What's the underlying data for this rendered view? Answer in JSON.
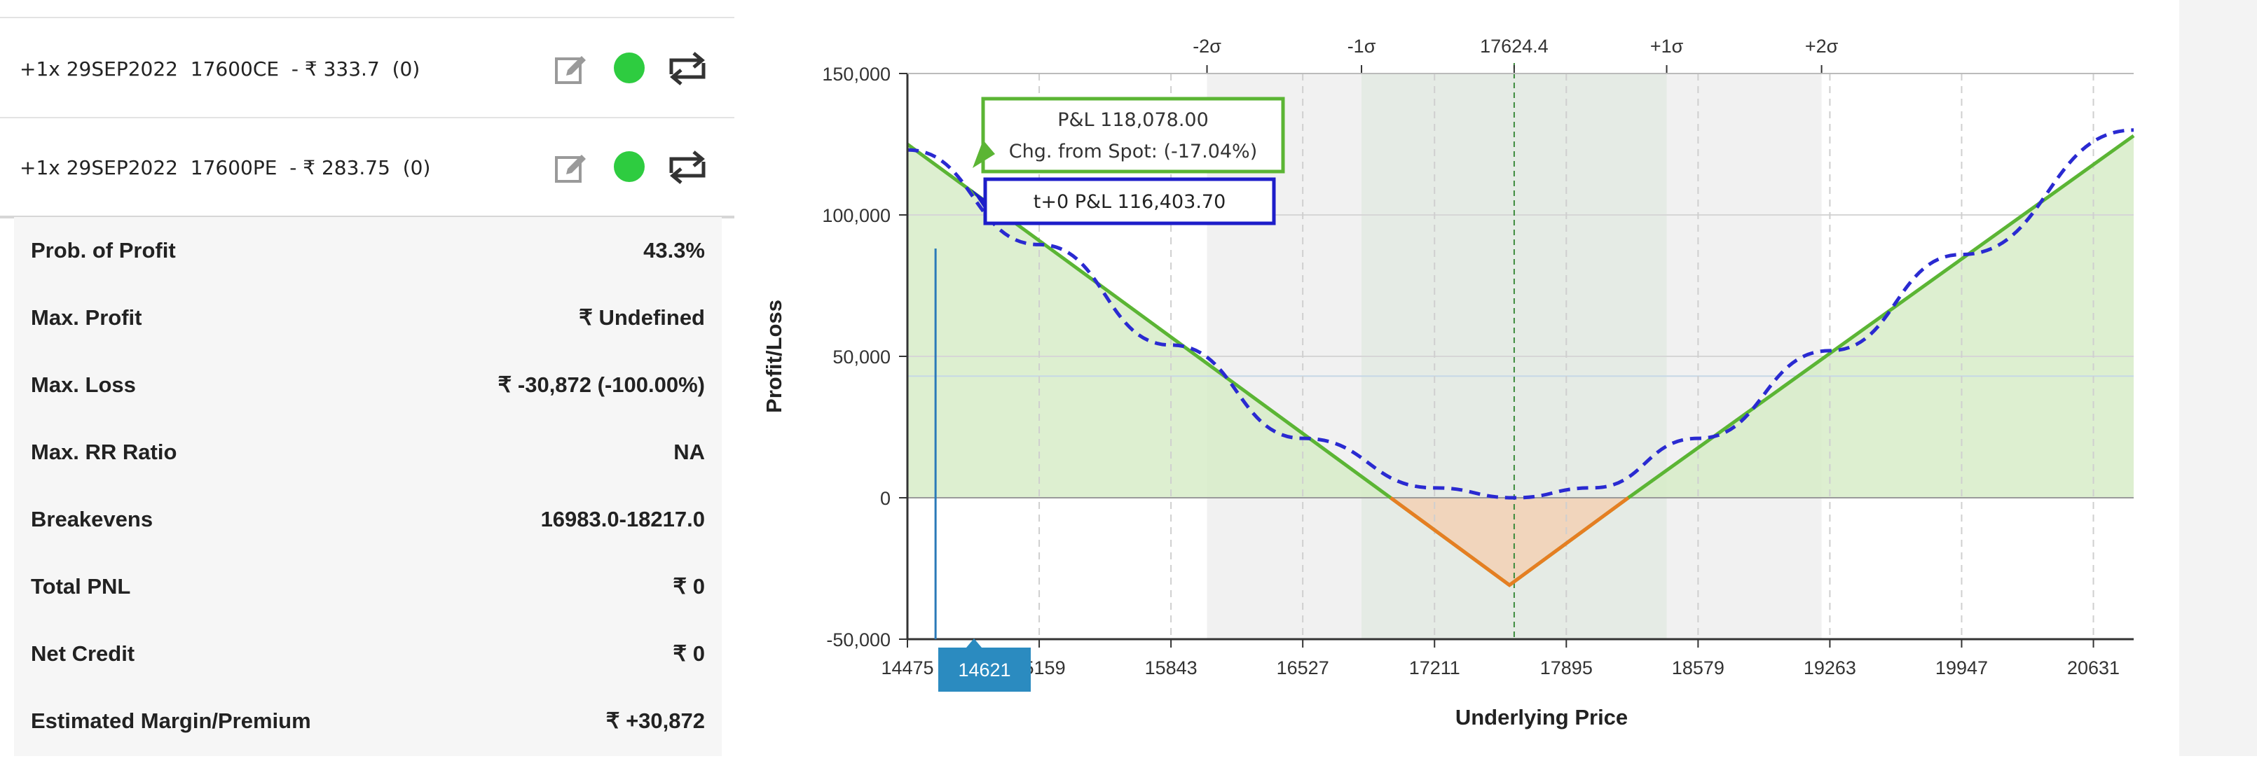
{
  "legs": [
    {
      "label": "+1x 29SEP2022  17600CE  - ₹ 333.7  (0)",
      "edit_icon": "edit-icon",
      "status_color": "#2ecc40",
      "swap_icon": "swap-icon"
    },
    {
      "label": "+1x 29SEP2022  17600PE  - ₹ 283.75  (0)",
      "edit_icon": "edit-icon",
      "status_color": "#2ecc40",
      "swap_icon": "swap-icon"
    }
  ],
  "stats": [
    {
      "label": "Prob. of Profit",
      "value": "43.3%"
    },
    {
      "label": "Max. Profit",
      "value": "₹ Undefined"
    },
    {
      "label": "Max. Loss",
      "value": "₹ -30,872 (-100.00%)"
    },
    {
      "label": "Max. RR Ratio",
      "value": "NA"
    },
    {
      "label": "Breakevens",
      "value": "16983.0-18217.0"
    },
    {
      "label": "Total PNL",
      "value": "₹ 0"
    },
    {
      "label": "Net Credit",
      "value": "₹ 0"
    },
    {
      "label": "Estimated Margin/Premium",
      "value": "₹ +30,872"
    }
  ],
  "chart_data": {
    "type": "line",
    "xlabel": "Underlying Price",
    "ylabel": "Profit/Loss",
    "xlim": [
      14475,
      20840
    ],
    "ylim": [
      -50000,
      150000
    ],
    "x_ticks": [
      "14475",
      "15159",
      "15843",
      "16527",
      "17211",
      "17895",
      "18579",
      "19263",
      "19947",
      "20631"
    ],
    "x_tick_values": [
      14475,
      15159,
      15843,
      16527,
      17211,
      17895,
      18579,
      19263,
      19947,
      20631
    ],
    "y_ticks": [
      "150,000",
      "100,000",
      "50,000",
      "0",
      "-50,000"
    ],
    "y_tick_values": [
      150000,
      100000,
      50000,
      0,
      -50000
    ],
    "sigma_labels": [
      "-2σ",
      "-1σ",
      "17624.4",
      "+1σ",
      "+2σ"
    ],
    "sigma_values": [
      16030,
      16832,
      17624.4,
      18416,
      19220
    ],
    "spot": 17624.4,
    "strike": 17600,
    "series": [
      {
        "color": "#5bb534",
        "style": "solid",
        "x": [
          14475,
          16983,
          17600,
          18217,
          20840
        ],
        "y": [
          125000,
          0,
          -30872,
          0,
          128000
        ]
      },
      {
        "color": "#2a2ad1",
        "style": "dashed",
        "x": [
          14475,
          15159,
          15843,
          16527,
          17211,
          17624.4,
          18030,
          18579,
          19263,
          19947,
          20840
        ],
        "y": [
          123000,
          89500,
          54000,
          21000,
          3500,
          0,
          3500,
          21000,
          52000,
          86000,
          130000
        ]
      }
    ],
    "tooltip": {
      "pnl": "P&L 118,078.00",
      "change": "Chg. from Spot: (-17.04%)",
      "t0": "t+0 P&L 116,403.70"
    },
    "cursor": {
      "x": 14621,
      "label": "14621"
    },
    "colors": {
      "profit_fill": "#d7ecc8",
      "loss_fill": "#f2d3b7",
      "loss_line": "#e67e22",
      "cursor_label_bg": "#2b8bc0"
    }
  }
}
